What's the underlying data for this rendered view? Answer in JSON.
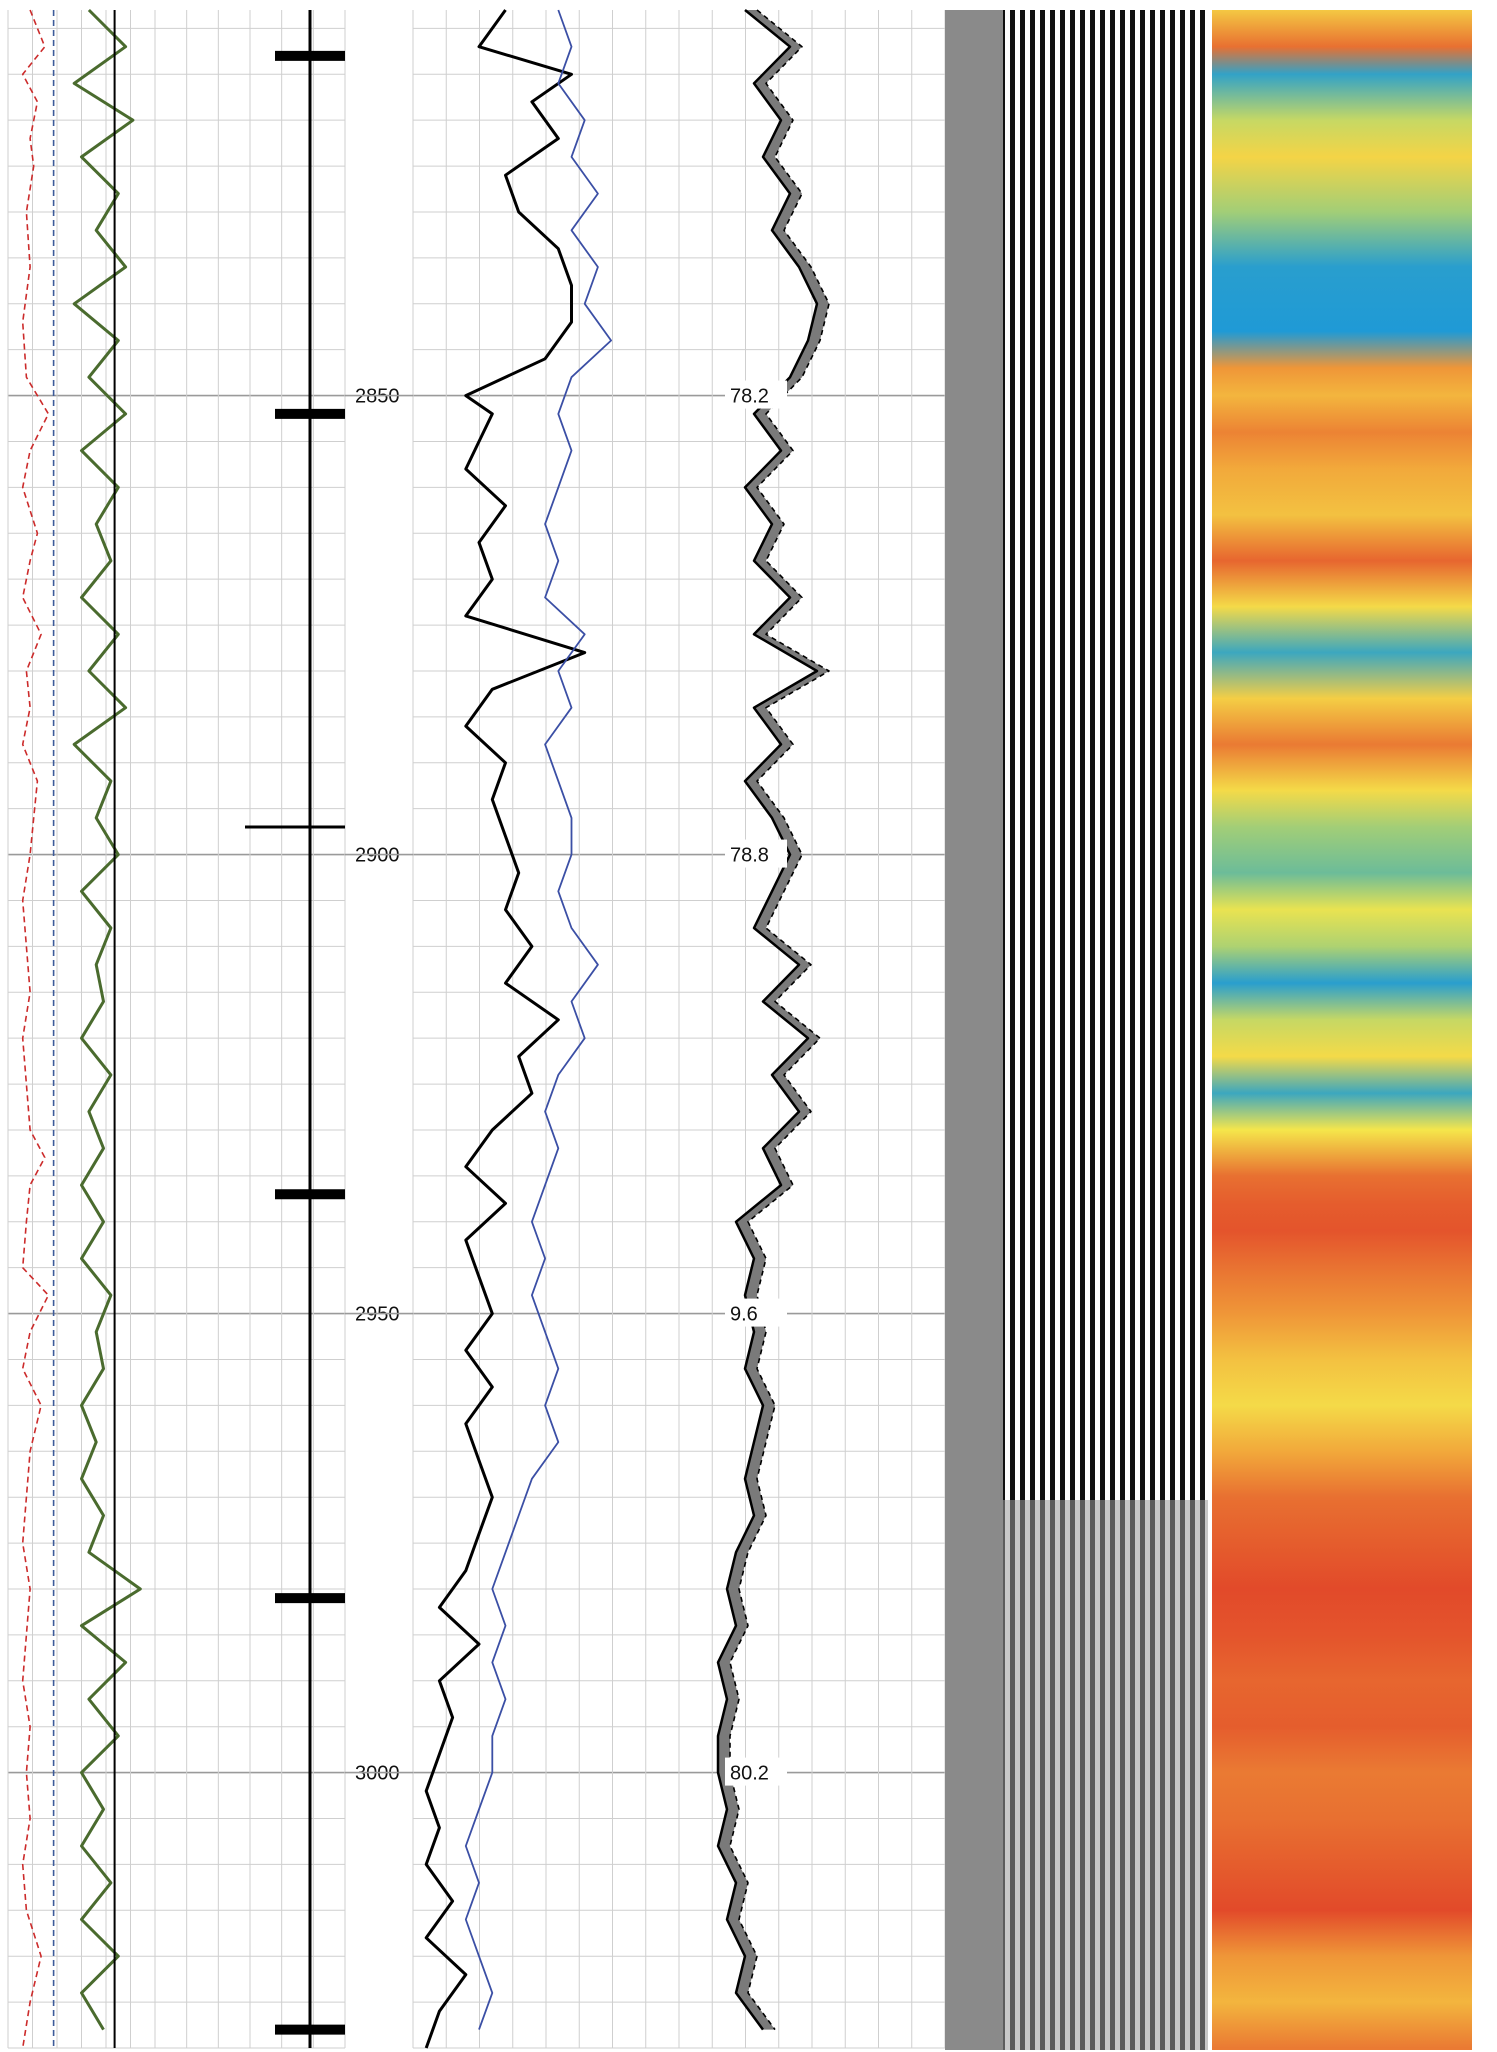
{
  "chart_data": {
    "type": "line",
    "title": "",
    "depth_axis": {
      "range": [
        2808,
        3030
      ],
      "major_step": 50,
      "minor_step": 5,
      "labels": [
        "2850",
        "2900",
        "2950",
        "3000"
      ],
      "label_values": [
        2850,
        2900,
        2950,
        3000
      ]
    },
    "track1": {
      "series": [
        {
          "color": "#cc2b2b",
          "style": "dashed",
          "description_free": true,
          "depth": [
            2808,
            2812,
            2815,
            2818,
            2822,
            2825,
            2830,
            2836,
            2842,
            2848,
            2852,
            2856,
            2860,
            2865,
            2868,
            2872,
            2876,
            2880,
            2884,
            2888,
            2892,
            2896,
            2900,
            2905,
            2910,
            2915,
            2920,
            2925,
            2930,
            2933,
            2936,
            2940,
            2945,
            2948,
            2952,
            2956,
            2960,
            2965,
            2970,
            2975,
            2980,
            2985,
            2990,
            2995,
            3000,
            3005,
            3010,
            3015,
            3020,
            3025,
            3030
          ],
          "value": [
            0.3,
            0.5,
            0.2,
            0.4,
            0.3,
            0.35,
            0.25,
            0.3,
            0.2,
            0.25,
            0.55,
            0.3,
            0.2,
            0.4,
            0.3,
            0.2,
            0.45,
            0.25,
            0.3,
            0.2,
            0.4,
            0.35,
            0.3,
            0.2,
            0.25,
            0.3,
            0.2,
            0.25,
            0.3,
            0.5,
            0.3,
            0.25,
            0.2,
            0.55,
            0.3,
            0.2,
            0.45,
            0.3,
            0.25,
            0.2,
            0.3,
            0.25,
            0.2,
            0.3,
            0.25,
            0.3,
            0.2,
            0.25,
            0.45,
            0.3,
            0.2
          ]
        },
        {
          "color": "#3c5a99",
          "style": "dashed",
          "depth": [
            2808,
            3030
          ],
          "value": [
            0.62,
            0.62
          ]
        },
        {
          "color": "#4a6b2e",
          "style": "solid",
          "depth": [
            2808,
            2812,
            2816,
            2820,
            2824,
            2828,
            2832,
            2836,
            2840,
            2844,
            2848,
            2852,
            2856,
            2860,
            2864,
            2868,
            2872,
            2876,
            2880,
            2884,
            2888,
            2892,
            2896,
            2900,
            2904,
            2908,
            2912,
            2916,
            2920,
            2924,
            2928,
            2932,
            2936,
            2940,
            2944,
            2948,
            2952,
            2956,
            2960,
            2964,
            2968,
            2972,
            2976,
            2980,
            2984,
            2988,
            2992,
            2996,
            3000,
            3004,
            3008,
            3012,
            3016,
            3020,
            3024,
            3028
          ],
          "value": [
            1.1,
            1.6,
            0.9,
            1.7,
            1.0,
            1.5,
            1.2,
            1.6,
            0.9,
            1.5,
            1.1,
            1.6,
            1.0,
            1.5,
            1.2,
            1.4,
            1.0,
            1.5,
            1.1,
            1.6,
            0.9,
            1.4,
            1.2,
            1.5,
            1.0,
            1.4,
            1.2,
            1.3,
            1.0,
            1.4,
            1.1,
            1.3,
            1.0,
            1.3,
            1.0,
            1.4,
            1.2,
            1.3,
            1.0,
            1.2,
            1.0,
            1.3,
            1.1,
            1.8,
            1.0,
            1.6,
            1.1,
            1.5,
            1.0,
            1.3,
            1.0,
            1.4,
            1.0,
            1.5,
            1.0,
            1.3
          ]
        },
        {
          "color": "#000000",
          "style": "solid",
          "depth": [
            2808,
            3030
          ],
          "value": [
            1.45,
            1.45
          ]
        }
      ]
    },
    "track2_markers": {
      "depths": [
        2813,
        2852,
        2897,
        2937,
        2981,
        3028
      ],
      "thin_depths": [
        2897
      ]
    },
    "track3": {
      "series": [
        {
          "color": "#000000",
          "depth": [
            2808,
            2812,
            2815,
            2818,
            2822,
            2826,
            2830,
            2834,
            2838,
            2842,
            2846,
            2850,
            2852,
            2855,
            2858,
            2862,
            2866,
            2870,
            2874,
            2878,
            2882,
            2886,
            2890,
            2894,
            2898,
            2902,
            2906,
            2910,
            2914,
            2918,
            2922,
            2926,
            2930,
            2934,
            2938,
            2942,
            2946,
            2950,
            2954,
            2958,
            2962,
            2966,
            2970,
            2974,
            2978,
            2982,
            2986,
            2990,
            2994,
            2998,
            3002,
            3006,
            3010,
            3014,
            3018,
            3022,
            3026,
            3030
          ],
          "value": [
            0.35,
            0.25,
            0.6,
            0.45,
            0.55,
            0.35,
            0.4,
            0.55,
            0.6,
            0.6,
            0.5,
            0.2,
            0.3,
            0.25,
            0.2,
            0.35,
            0.25,
            0.3,
            0.2,
            0.65,
            0.3,
            0.2,
            0.35,
            0.3,
            0.35,
            0.4,
            0.35,
            0.45,
            0.35,
            0.55,
            0.4,
            0.45,
            0.3,
            0.2,
            0.35,
            0.2,
            0.25,
            0.3,
            0.2,
            0.3,
            0.2,
            0.25,
            0.3,
            0.25,
            0.2,
            0.1,
            0.25,
            0.1,
            0.15,
            0.1,
            0.05,
            0.1,
            0.05,
            0.15,
            0.05,
            0.2,
            0.1,
            0.05
          ]
        },
        {
          "color": "#3b4fa5",
          "depth": [
            2808,
            2812,
            2816,
            2820,
            2824,
            2828,
            2832,
            2836,
            2840,
            2844,
            2848,
            2852,
            2856,
            2860,
            2864,
            2868,
            2872,
            2876,
            2880,
            2884,
            2888,
            2892,
            2896,
            2900,
            2904,
            2908,
            2912,
            2916,
            2920,
            2924,
            2928,
            2932,
            2936,
            2940,
            2944,
            2948,
            2952,
            2956,
            2960,
            2964,
            2968,
            2972,
            2976,
            2980,
            2984,
            2988,
            2992,
            2996,
            3000,
            3004,
            3008,
            3012,
            3016,
            3020,
            3024,
            3028
          ],
          "value": [
            0.55,
            0.6,
            0.55,
            0.65,
            0.6,
            0.7,
            0.6,
            0.7,
            0.65,
            0.75,
            0.6,
            0.55,
            0.6,
            0.55,
            0.5,
            0.55,
            0.5,
            0.65,
            0.55,
            0.6,
            0.5,
            0.55,
            0.6,
            0.6,
            0.55,
            0.6,
            0.7,
            0.6,
            0.65,
            0.55,
            0.5,
            0.55,
            0.5,
            0.45,
            0.5,
            0.45,
            0.5,
            0.55,
            0.5,
            0.55,
            0.45,
            0.4,
            0.35,
            0.3,
            0.35,
            0.3,
            0.35,
            0.3,
            0.3,
            0.25,
            0.2,
            0.25,
            0.2,
            0.25,
            0.3,
            0.25
          ]
        }
      ]
    },
    "track4": {
      "labels": [
        "78.2",
        "78.8",
        "9.6",
        "80.2"
      ],
      "label_depths": [
        2850,
        2900,
        2950,
        3000
      ],
      "series": [
        {
          "color": "#000000",
          "depth": [
            2808,
            2812,
            2816,
            2820,
            2824,
            2828,
            2832,
            2836,
            2840,
            2844,
            2848,
            2852,
            2856,
            2860,
            2864,
            2868,
            2872,
            2876,
            2880,
            2884,
            2888,
            2892,
            2896,
            2900,
            2904,
            2908,
            2912,
            2916,
            2920,
            2924,
            2928,
            2932,
            2936,
            2940,
            2944,
            2948,
            2952,
            2956,
            2960,
            2964,
            2968,
            2972,
            2976,
            2980,
            2984,
            2988,
            2992,
            2996,
            3000,
            3004,
            3008,
            3012,
            3016,
            3020,
            3024,
            3028
          ],
          "value": [
            0.25,
            0.5,
            0.3,
            0.45,
            0.35,
            0.5,
            0.4,
            0.55,
            0.65,
            0.6,
            0.5,
            0.3,
            0.45,
            0.25,
            0.4,
            0.3,
            0.5,
            0.3,
            0.65,
            0.3,
            0.45,
            0.25,
            0.4,
            0.5,
            0.4,
            0.3,
            0.55,
            0.35,
            0.6,
            0.4,
            0.55,
            0.35,
            0.45,
            0.2,
            0.3,
            0.25,
            0.3,
            0.25,
            0.35,
            0.3,
            0.25,
            0.3,
            0.2,
            0.15,
            0.2,
            0.1,
            0.15,
            0.1,
            0.1,
            0.15,
            0.1,
            0.2,
            0.15,
            0.25,
            0.2,
            0.35
          ]
        }
      ]
    },
    "track6_colormap": {
      "colors": [
        "#1f9ad6",
        "#7fc48a",
        "#f5e64b",
        "#f2a93b",
        "#e24a2a"
      ],
      "depth": [
        2808,
        2812,
        2815,
        2820,
        2824,
        2830,
        2836,
        2843,
        2847,
        2850,
        2854,
        2858,
        2863,
        2868,
        2873,
        2878,
        2883,
        2888,
        2893,
        2897,
        2902,
        2906,
        2910,
        2914,
        2918,
        2922,
        2926,
        2930,
        2935,
        2938,
        2941,
        2946,
        2950,
        2955,
        2960,
        2965,
        2970,
        2975,
        2980,
        2985,
        2990,
        2995,
        3000,
        3005,
        3010,
        3015,
        3020,
        3025,
        3030
      ],
      "value": [
        2.5,
        3.6,
        0.2,
        1.6,
        2.3,
        1.3,
        0.1,
        0.0,
        3.2,
        2.8,
        3.4,
        3.0,
        2.6,
        3.7,
        2.2,
        0.3,
        2.4,
        3.5,
        2.2,
        1.3,
        0.8,
        1.9,
        1.4,
        0.1,
        1.6,
        2.2,
        0.3,
        2.0,
        3.6,
        3.8,
        3.9,
        3.5,
        3.2,
        2.6,
        2.2,
        3.0,
        3.6,
        3.8,
        4.0,
        3.9,
        3.7,
        3.8,
        3.5,
        3.6,
        3.8,
        4.0,
        3.2,
        2.8,
        3.5
      ]
    }
  }
}
